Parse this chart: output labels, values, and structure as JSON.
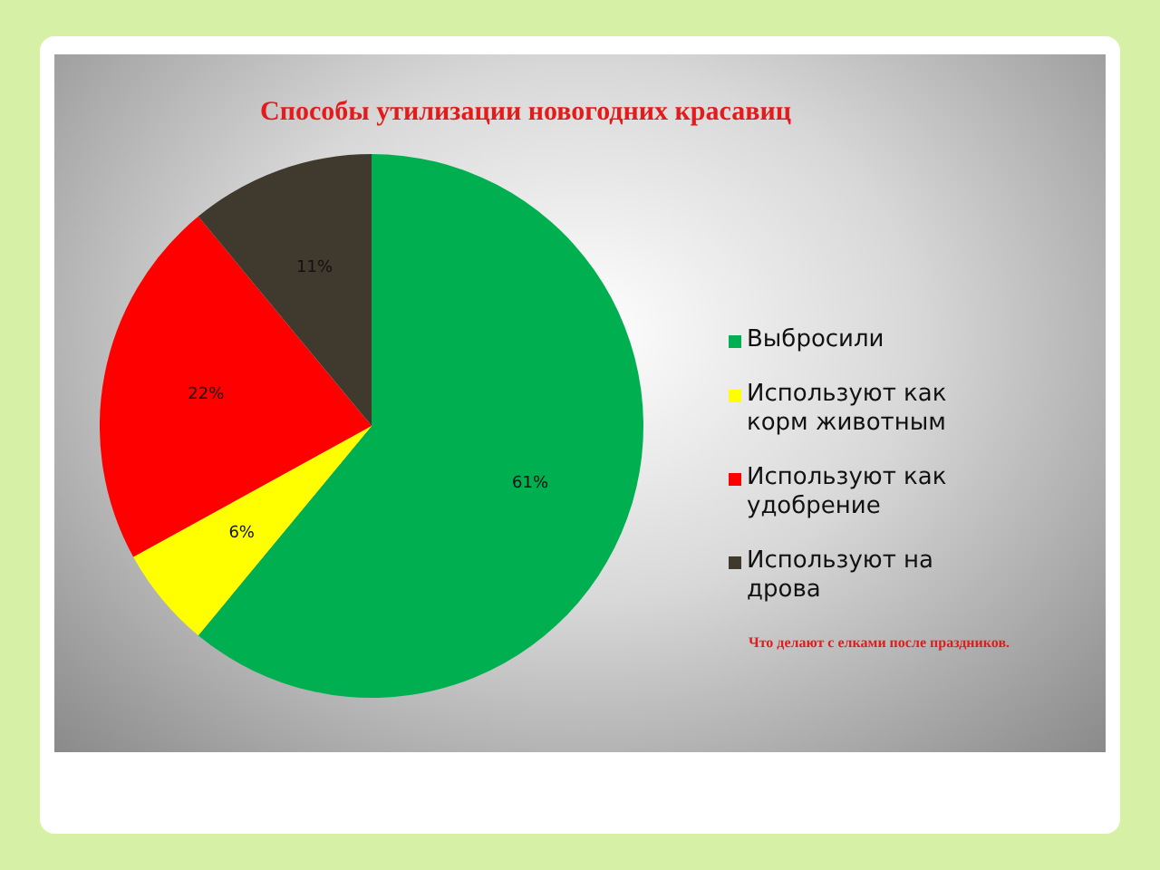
{
  "chart_data": {
    "type": "pie",
    "title": "Способы утилизации новогодних красавиц",
    "categories": [
      "Выбросили",
      "Используют как корм животным",
      "Используют как удобрение",
      "Используют на дрова"
    ],
    "values": [
      61,
      6,
      22,
      11
    ],
    "colors": [
      "#00b050",
      "#ffff00",
      "#ff0000",
      "#403a2e"
    ],
    "value_labels": [
      "61%",
      "6%",
      "22%",
      "11%"
    ],
    "legend": "right",
    "annotations": [
      "Что делают с елками после праздников."
    ]
  }
}
